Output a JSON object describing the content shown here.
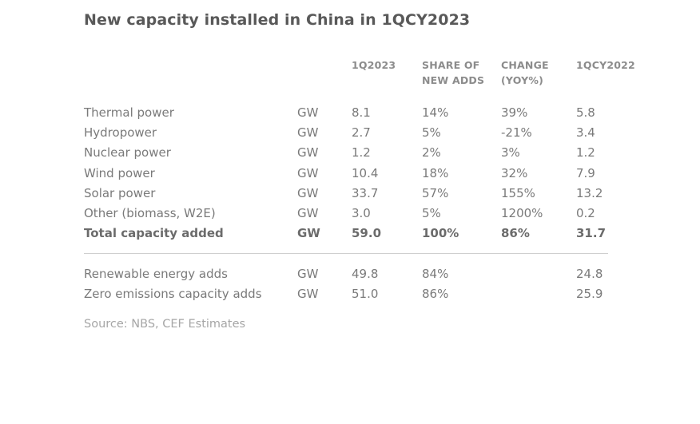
{
  "title": "New capacity installed in China in 1QCY2023",
  "columns": {
    "q1_2023": [
      "1Q2023"
    ],
    "share": [
      "SHARE OF",
      "NEW ADDS"
    ],
    "change": [
      "CHANGE",
      "(YOY%)"
    ],
    "q1_2022": [
      "1QCY2022"
    ]
  },
  "rows": [
    {
      "label": "Thermal power",
      "unit": "GW",
      "q1_2023": "8.1",
      "share": "14%",
      "change": "39%",
      "q1_2022": "5.8",
      "bold": false
    },
    {
      "label": "Hydropower",
      "unit": "GW",
      "q1_2023": "2.7",
      "share": "5%",
      "change": "-21%",
      "q1_2022": "3.4",
      "bold": false
    },
    {
      "label": "Nuclear power",
      "unit": "GW",
      "q1_2023": "1.2",
      "share": "2%",
      "change": "3%",
      "q1_2022": "1.2",
      "bold": false
    },
    {
      "label": "Wind power",
      "unit": "GW",
      "q1_2023": "10.4",
      "share": "18%",
      "change": "32%",
      "q1_2022": "7.9",
      "bold": false
    },
    {
      "label": "Solar power",
      "unit": "GW",
      "q1_2023": "33.7",
      "share": "57%",
      "change": "155%",
      "q1_2022": "13.2",
      "bold": false
    },
    {
      "label": "Other (biomass, W2E)",
      "unit": "GW",
      "q1_2023": "3.0",
      "share": "5%",
      "change": "1200%",
      "q1_2022": "0.2",
      "bold": false
    },
    {
      "label": "Total capacity added",
      "unit": "GW",
      "q1_2023": "59.0",
      "share": "100%",
      "change": "86%",
      "q1_2022": "31.7",
      "bold": true
    }
  ],
  "summary_rows": [
    {
      "label": "Renewable energy adds",
      "unit": "GW",
      "q1_2023": "49.8",
      "share": "84%",
      "change": "",
      "q1_2022": "24.8"
    },
    {
      "label": "Zero emissions capacity adds",
      "unit": "GW",
      "q1_2023": "51.0",
      "share": "86%",
      "change": "",
      "q1_2022": "25.9"
    }
  ],
  "source": "Source: NBS, CEF Estimates",
  "chart_data": {
    "type": "table",
    "title": "New capacity installed in China in 1QCY2023",
    "columns": [
      "",
      "",
      "1Q2023",
      "SHARE OF NEW ADDS",
      "CHANGE (YOY%)",
      "1QCY2022"
    ],
    "rows": [
      [
        "Thermal power",
        "GW",
        8.1,
        "14%",
        "39%",
        5.8
      ],
      [
        "Hydropower",
        "GW",
        2.7,
        "5%",
        "-21%",
        3.4
      ],
      [
        "Nuclear power",
        "GW",
        1.2,
        "2%",
        "3%",
        1.2
      ],
      [
        "Wind power",
        "GW",
        10.4,
        "18%",
        "32%",
        7.9
      ],
      [
        "Solar power",
        "GW",
        33.7,
        "57%",
        "155%",
        13.2
      ],
      [
        "Other (biomass, W2E)",
        "GW",
        3.0,
        "5%",
        "1200%",
        0.2
      ],
      [
        "Total capacity added",
        "GW",
        59.0,
        "100%",
        "86%",
        31.7
      ],
      [
        "Renewable energy adds",
        "GW",
        49.8,
        "84%",
        "",
        24.8
      ],
      [
        "Zero emissions capacity adds",
        "GW",
        51.0,
        "86%",
        "",
        25.9
      ]
    ]
  }
}
